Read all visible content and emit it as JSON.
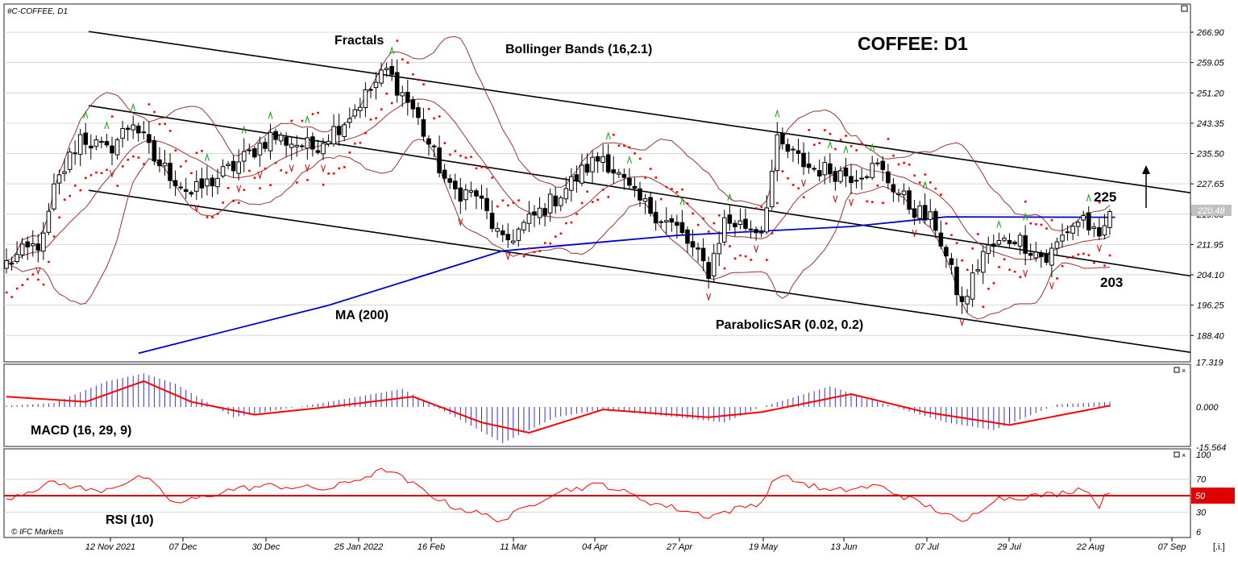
{
  "symbol_label": "#C-COFFEE, D1",
  "title": "COFFEE: D1",
  "copyright": "© IFC Markets",
  "corner_button": "[.i.]",
  "price_axis_ticks": [
    "266.90",
    "259.05",
    "251.20",
    "243.35",
    "235.50",
    "227.65",
    "219.80",
    "211.95",
    "204.10",
    "196.25",
    "188.40"
  ],
  "current_price_label": "220.48",
  "date_axis_labels": [
    "12 Nov 2021",
    "07 Dec",
    "30 Dec",
    "25 Jan 2022",
    "16 Feb",
    "11 Mar",
    "04 Apr",
    "27 Apr",
    "19 May",
    "13 Jun",
    "07 Jul",
    "29 Jul",
    "22 Aug",
    "07 Sep"
  ],
  "annotations": {
    "fractals": "Fractals",
    "bollinger": "Bollinger Bands (16,2.1)",
    "ma": "MA (200)",
    "sar": "ParabolicSAR (0.02, 0.2)",
    "level_upper": "225",
    "level_lower": "203"
  },
  "macd_panel": {
    "label": "MACD (16, 29, 9)",
    "ticks": [
      "17.319",
      "0.000",
      "-15.564"
    ]
  },
  "rsi_panel": {
    "label": "RSI (10)",
    "ticks": [
      "100",
      "70",
      "50",
      "30",
      "6"
    ],
    "marked_level": "50"
  },
  "colors": {
    "candle": "#000000",
    "ma200": "#0000cc",
    "bollinger": "#993333",
    "sar": "#ff0000",
    "fractal_up": "#00aa00",
    "fractal_down": "#cc0000",
    "macd_hist": "#3333cc",
    "macd_signal": "#ff0000",
    "rsi": "#ff0000",
    "rsi_level": "#cc0000",
    "channel": "#000000"
  },
  "chart_data": {
    "type": "candlestick",
    "timeframe": "D1",
    "ylim": [
      184.5,
      272.5
    ],
    "channel_lines": [
      {
        "from": {
          "date": "2021-11-12",
          "price": 268.4
        },
        "to": {
          "date": "2022-09-07",
          "price": 225.8
        }
      },
      {
        "from": {
          "date": "2021-11-12",
          "price": 249.3
        },
        "to": {
          "date": "2022-09-07",
          "price": 204.3
        }
      },
      {
        "from": {
          "date": "2021-11-12",
          "price": 227.3
        },
        "to": {
          "date": "2022-09-07",
          "price": 184.5
        }
      }
    ],
    "target_arrow": "up",
    "close_anchors": [
      {
        "date": "2021-11-01",
        "close": 207
      },
      {
        "date": "2021-11-10",
        "close": 213
      },
      {
        "date": "2021-11-12",
        "close": 226
      },
      {
        "date": "2021-11-19",
        "close": 240
      },
      {
        "date": "2021-11-26",
        "close": 236
      },
      {
        "date": "2021-12-03",
        "close": 244
      },
      {
        "date": "2021-12-09",
        "close": 234
      },
      {
        "date": "2021-12-20",
        "close": 225
      },
      {
        "date": "2021-12-30",
        "close": 232
      },
      {
        "date": "2022-01-10",
        "close": 240
      },
      {
        "date": "2022-01-20",
        "close": 237
      },
      {
        "date": "2022-01-28",
        "close": 244
      },
      {
        "date": "2022-02-09",
        "close": 257
      },
      {
        "date": "2022-02-16",
        "close": 247
      },
      {
        "date": "2022-02-25",
        "close": 226
      },
      {
        "date": "2022-03-04",
        "close": 225
      },
      {
        "date": "2022-03-11",
        "close": 212
      },
      {
        "date": "2022-03-25",
        "close": 224
      },
      {
        "date": "2022-04-04",
        "close": 232
      },
      {
        "date": "2022-04-07",
        "close": 235
      },
      {
        "date": "2022-04-15",
        "close": 224
      },
      {
        "date": "2022-04-27",
        "close": 216
      },
      {
        "date": "2022-05-05",
        "close": 205
      },
      {
        "date": "2022-05-10",
        "close": 218
      },
      {
        "date": "2022-05-19",
        "close": 216
      },
      {
        "date": "2022-05-24",
        "close": 238
      },
      {
        "date": "2022-06-01",
        "close": 232
      },
      {
        "date": "2022-06-13",
        "close": 230
      },
      {
        "date": "2022-06-20",
        "close": 232
      },
      {
        "date": "2022-06-28",
        "close": 222
      },
      {
        "date": "2022-07-05",
        "close": 217
      },
      {
        "date": "2022-07-12",
        "close": 196
      },
      {
        "date": "2022-07-18",
        "close": 210
      },
      {
        "date": "2022-07-26",
        "close": 214
      },
      {
        "date": "2022-08-03",
        "close": 208
      },
      {
        "date": "2022-08-09",
        "close": 216
      },
      {
        "date": "2022-08-12",
        "close": 219
      },
      {
        "date": "2022-08-17",
        "close": 212
      },
      {
        "date": "2022-08-19",
        "close": 220.48
      }
    ],
    "ma200": [
      {
        "date": "2021-12-06",
        "value": 183.8
      },
      {
        "date": "2022-01-25",
        "value": 196.2
      },
      {
        "date": "2022-03-11",
        "value": 210.3
      },
      {
        "date": "2022-04-27",
        "value": 214.3
      },
      {
        "date": "2022-06-13",
        "value": 216.6
      },
      {
        "date": "2022-07-07",
        "value": 219.1
      },
      {
        "date": "2022-08-22",
        "value": 219.0
      }
    ],
    "macd": {
      "ylim": [
        -15.564,
        17.319
      ],
      "histogram_anchors": [
        {
          "date": "2021-11-01",
          "value": 0.5
        },
        {
          "date": "2021-11-12",
          "value": 1.5
        },
        {
          "date": "2021-11-26",
          "value": 10
        },
        {
          "date": "2021-12-07",
          "value": 13
        },
        {
          "date": "2021-12-15",
          "value": 9
        },
        {
          "date": "2021-12-30",
          "value": -4
        },
        {
          "date": "2022-01-25",
          "value": 2
        },
        {
          "date": "2022-02-14",
          "value": 7
        },
        {
          "date": "2022-03-01",
          "value": -5
        },
        {
          "date": "2022-03-11",
          "value": -14
        },
        {
          "date": "2022-03-25",
          "value": -4
        },
        {
          "date": "2022-04-07",
          "value": -1
        },
        {
          "date": "2022-04-27",
          "value": -4
        },
        {
          "date": "2022-05-10",
          "value": -6
        },
        {
          "date": "2022-05-19",
          "value": 0
        },
        {
          "date": "2022-06-07",
          "value": 8
        },
        {
          "date": "2022-06-20",
          "value": 2
        },
        {
          "date": "2022-07-07",
          "value": -6
        },
        {
          "date": "2022-07-20",
          "value": -9
        },
        {
          "date": "2022-08-05",
          "value": 1
        },
        {
          "date": "2022-08-19",
          "value": 2
        }
      ],
      "signal_anchors": [
        {
          "date": "2021-11-01",
          "value": 4
        },
        {
          "date": "2021-11-20",
          "value": 2
        },
        {
          "date": "2021-12-07",
          "value": 10
        },
        {
          "date": "2021-12-20",
          "value": 2
        },
        {
          "date": "2022-01-05",
          "value": -3
        },
        {
          "date": "2022-01-25",
          "value": 0
        },
        {
          "date": "2022-02-16",
          "value": 4
        },
        {
          "date": "2022-03-05",
          "value": -6
        },
        {
          "date": "2022-03-18",
          "value": -10
        },
        {
          "date": "2022-04-07",
          "value": -1
        },
        {
          "date": "2022-05-05",
          "value": -4
        },
        {
          "date": "2022-05-19",
          "value": -2
        },
        {
          "date": "2022-06-13",
          "value": 5
        },
        {
          "date": "2022-07-01",
          "value": -2
        },
        {
          "date": "2022-07-25",
          "value": -7
        },
        {
          "date": "2022-08-19",
          "value": 0.5
        }
      ]
    },
    "rsi": {
      "ylim": [
        6,
        100
      ],
      "levels": [
        70,
        50,
        30
      ],
      "anchors": [
        {
          "date": "2021-11-01",
          "value": 47
        },
        {
          "date": "2021-11-12",
          "value": 66
        },
        {
          "date": "2021-11-24",
          "value": 55
        },
        {
          "date": "2021-12-07",
          "value": 73
        },
        {
          "date": "2021-12-15",
          "value": 40
        },
        {
          "date": "2021-12-30",
          "value": 58
        },
        {
          "date": "2022-01-10",
          "value": 62
        },
        {
          "date": "2022-01-25",
          "value": 58
        },
        {
          "date": "2022-02-09",
          "value": 82
        },
        {
          "date": "2022-02-25",
          "value": 38
        },
        {
          "date": "2022-03-11",
          "value": 20
        },
        {
          "date": "2022-03-25",
          "value": 55
        },
        {
          "date": "2022-04-07",
          "value": 64
        },
        {
          "date": "2022-04-20",
          "value": 42
        },
        {
          "date": "2022-05-05",
          "value": 25
        },
        {
          "date": "2022-05-19",
          "value": 42
        },
        {
          "date": "2022-05-24",
          "value": 75
        },
        {
          "date": "2022-06-07",
          "value": 55
        },
        {
          "date": "2022-06-20",
          "value": 62
        },
        {
          "date": "2022-07-07",
          "value": 28
        },
        {
          "date": "2022-07-12",
          "value": 16
        },
        {
          "date": "2022-07-20",
          "value": 46
        },
        {
          "date": "2022-08-05",
          "value": 52
        },
        {
          "date": "2022-08-12",
          "value": 60
        },
        {
          "date": "2022-08-17",
          "value": 38
        },
        {
          "date": "2022-08-19",
          "value": 57
        }
      ]
    }
  }
}
